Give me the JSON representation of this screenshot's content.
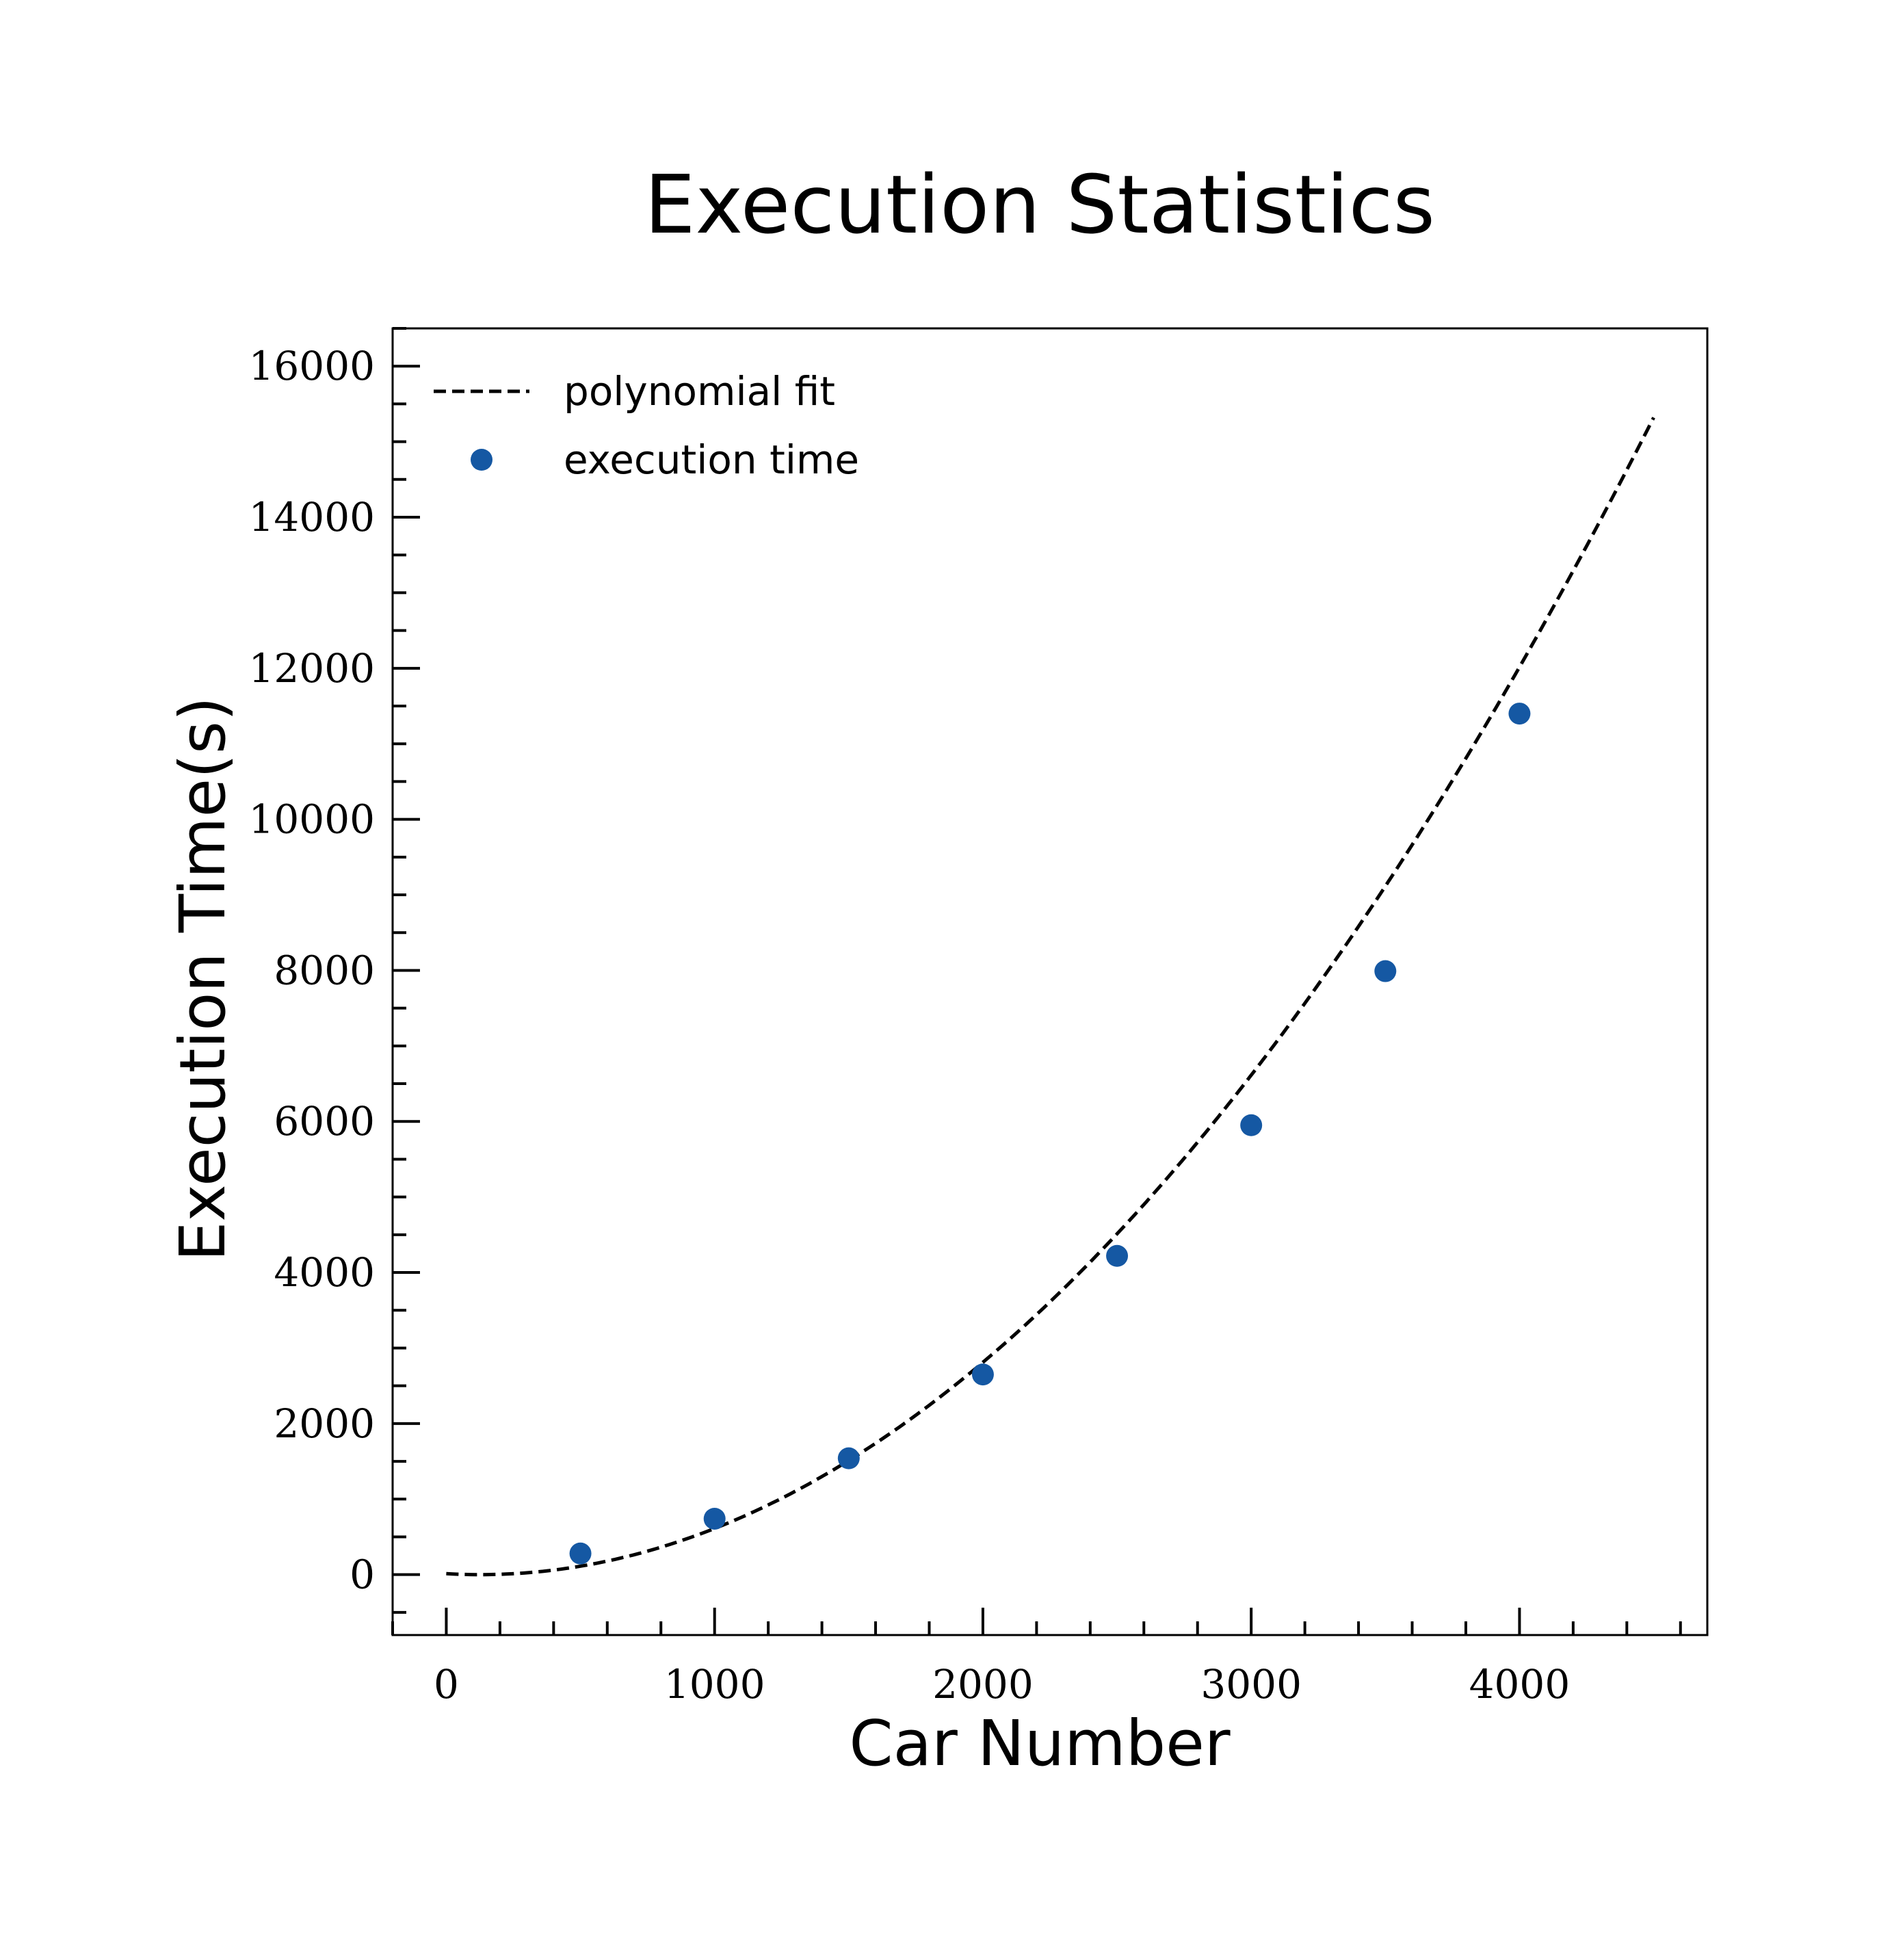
{
  "chart_data": {
    "type": "scatter",
    "title": "Execution Statistics",
    "xlabel": "Car Number",
    "ylabel": "Execution Time(s)",
    "xlim": [
      -200,
      4700
    ],
    "ylim": [
      -800,
      16500
    ],
    "xticks": [
      0,
      1000,
      2000,
      3000,
      4000
    ],
    "yticks": [
      0,
      2000,
      4000,
      6000,
      8000,
      10000,
      12000,
      14000,
      16000
    ],
    "x_minor_step": 200,
    "y_minor_step": 500,
    "grid": false,
    "legend_position": "top-left",
    "series": [
      {
        "name": "polynomial fit",
        "kind": "line",
        "style": "dashed",
        "color": "#000000",
        "fit": {
          "degree": 2,
          "coefficients": [
            0.000801,
            -0.2031,
            12.9
          ],
          "x_range": [
            0,
            4500
          ]
        }
      },
      {
        "name": "execution time",
        "kind": "scatter",
        "color": "#1558a3",
        "x": [
          500,
          1000,
          1500,
          2000,
          2500,
          3000,
          3500,
          4000
        ],
        "y": [
          280,
          740,
          1540,
          2650,
          4220,
          5950,
          7990,
          11400
        ]
      }
    ]
  }
}
